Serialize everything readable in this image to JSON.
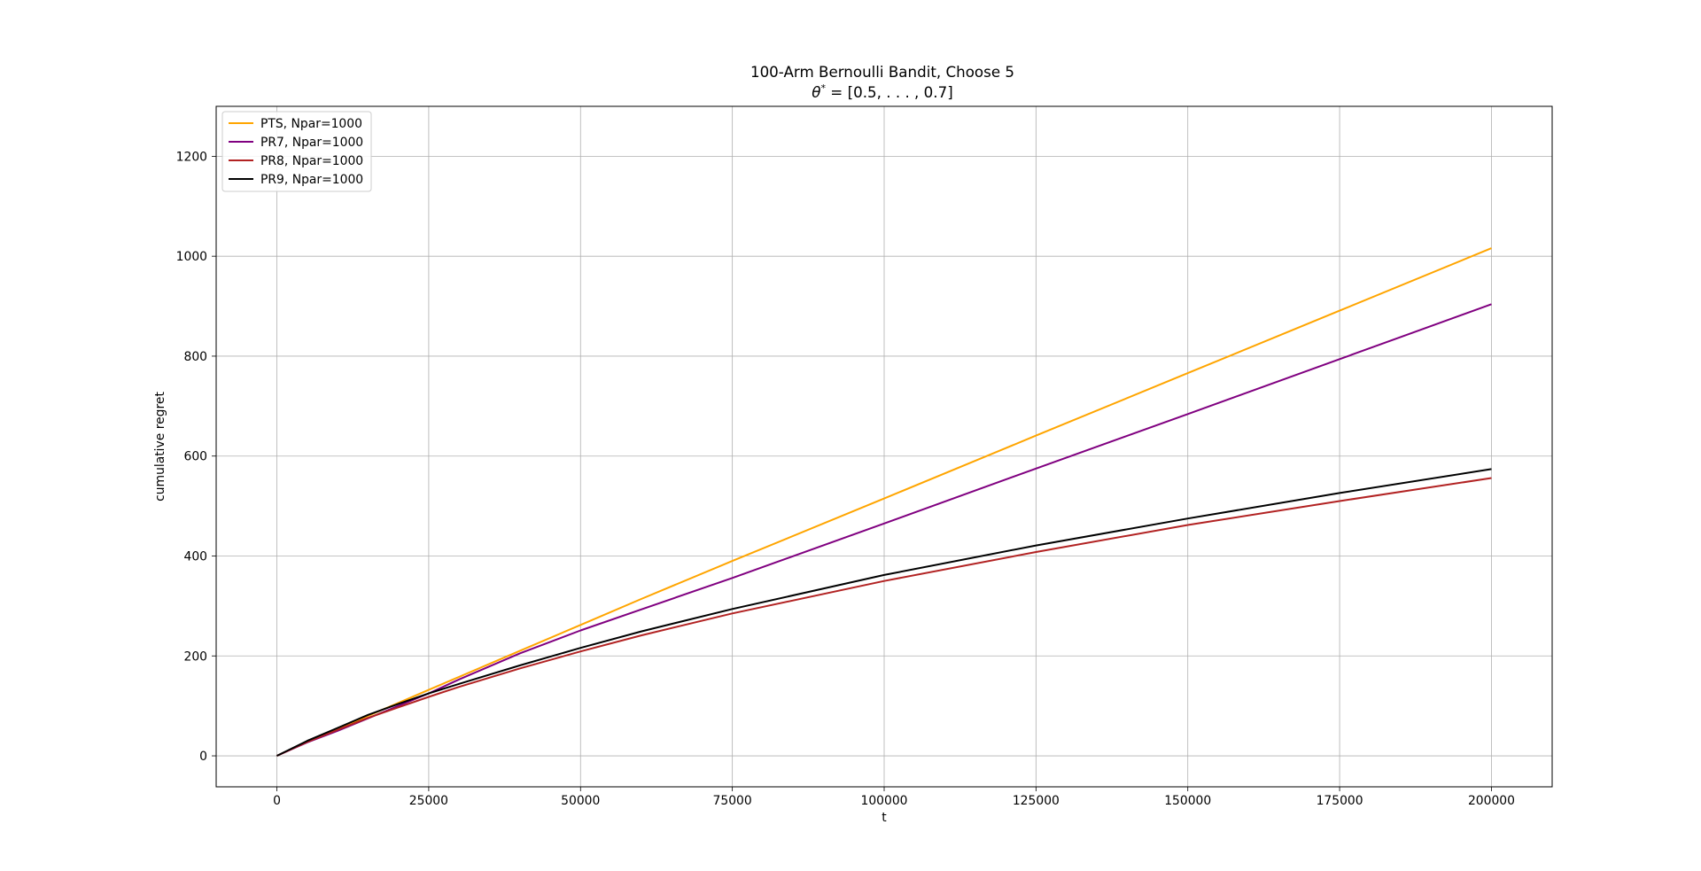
{
  "chart_data": {
    "type": "line",
    "title": "100-Arm Bernoulli Bandit, Choose 5",
    "subtitle_parts": {
      "theta": "θ",
      "star": "*",
      "rest": " = [0.5, . . . , 0.7]"
    },
    "xlabel": "t",
    "ylabel": "cumulative regret",
    "xlim": [
      -10000,
      210000
    ],
    "ylim": [
      -62,
      1300
    ],
    "xticks": [
      0,
      25000,
      50000,
      75000,
      100000,
      125000,
      150000,
      175000,
      200000
    ],
    "xtick_labels": [
      "0",
      "25000",
      "50000",
      "75000",
      "100000",
      "125000",
      "150000",
      "175000",
      "200000"
    ],
    "yticks": [
      0,
      200,
      400,
      600,
      800,
      1000,
      1200
    ],
    "ytick_labels": [
      "0",
      "200",
      "400",
      "600",
      "800",
      "1000",
      "1200"
    ],
    "grid": true,
    "legend_position": "upper-left",
    "x": [
      0,
      5000,
      10000,
      15000,
      20000,
      25000,
      30000,
      40000,
      50000,
      60000,
      75000,
      100000,
      125000,
      150000,
      175000,
      200000
    ],
    "series": [
      {
        "name": "PTS, Npar=1000",
        "color": "#ffa500",
        "values": [
          0,
          28,
          53,
          80,
          106,
          132,
          158,
          210,
          262,
          314,
          390,
          515,
          641,
          766,
          891,
          1016
        ]
      },
      {
        "name": "PR7, Npar=1000",
        "color": "#800080",
        "values": [
          0,
          27,
          50,
          75,
          100,
          125,
          153,
          205,
          251,
          293,
          356,
          465,
          575,
          684,
          794,
          904
        ]
      },
      {
        "name": "PR8, Npar=1000",
        "color": "#b22222",
        "values": [
          0,
          28,
          52,
          76,
          97,
          118,
          138,
          175,
          209,
          241,
          285,
          350,
          408,
          462,
          510,
          556
        ]
      },
      {
        "name": "PR9, Npar=1000",
        "color": "#000000",
        "values": [
          0,
          30,
          56,
          82,
          104,
          125,
          144,
          181,
          216,
          249,
          294,
          362,
          421,
          475,
          526,
          574
        ]
      }
    ]
  }
}
